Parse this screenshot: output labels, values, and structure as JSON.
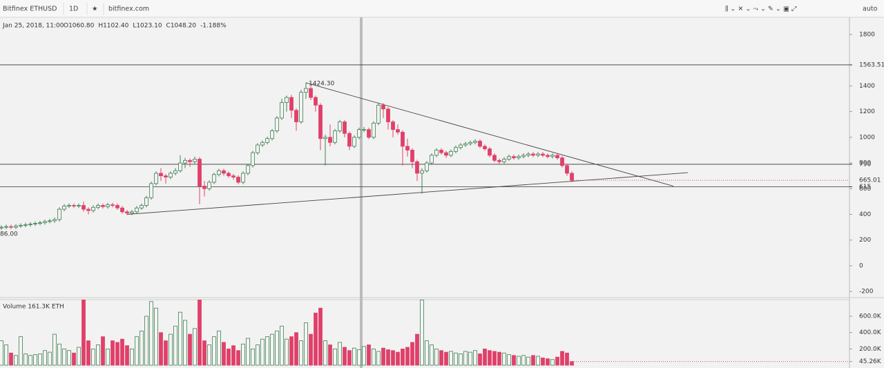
{
  "chart_data": {
    "type": "candlestick",
    "title": "Bitfinex ETHUSD",
    "interval": "1D",
    "source": "bitfinex.com",
    "scale_mode": "auto",
    "legend_date": "Jan 25, 2018, 11:00",
    "legend_ohlc": [
      "O1060.80",
      "H1102.40",
      "L1023.10",
      "C1048.20",
      "-1.188%"
    ],
    "volume_label": "Volume 161.3K ETH",
    "open": [
      295,
      300,
      305,
      300,
      310,
      315,
      320,
      325,
      330,
      335,
      345,
      350,
      360,
      440,
      465,
      470,
      465,
      470,
      440,
      430,
      455,
      470,
      460,
      475,
      470,
      450,
      420,
      410,
      420,
      450,
      470,
      530,
      640,
      720,
      700,
      690,
      720,
      740,
      800,
      820,
      810,
      830,
      620,
      600,
      650,
      710,
      740,
      720,
      700,
      690,
      650,
      720,
      780,
      880,
      940,
      960,
      990,
      1050,
      1150,
      1270,
      1310,
      1210,
      1120,
      1350,
      1380,
      1310,
      1250,
      990,
      1000,
      960,
      1050,
      1120,
      1030,
      930,
      1000,
      1060,
      1060,
      1000,
      1110,
      1250,
      1220,
      1120,
      1060,
      1040,
      930,
      900,
      810,
      720,
      740,
      800,
      860,
      900,
      880,
      860,
      890,
      920,
      940,
      950,
      960,
      970,
      930,
      910,
      860,
      820,
      810,
      830,
      850,
      840,
      850,
      860,
      870,
      860,
      870,
      860,
      850,
      860,
      840,
      780,
      720
    ],
    "high": [
      315,
      320,
      320,
      325,
      330,
      335,
      340,
      345,
      350,
      360,
      365,
      375,
      455,
      480,
      485,
      485,
      485,
      500,
      455,
      470,
      485,
      485,
      490,
      490,
      485,
      465,
      435,
      435,
      465,
      485,
      545,
      655,
      735,
      760,
      715,
      735,
      760,
      860,
      840,
      835,
      850,
      845,
      660,
      665,
      725,
      755,
      755,
      735,
      715,
      705,
      735,
      795,
      895,
      955,
      975,
      1005,
      1065,
      1165,
      1300,
      1325,
      1330,
      1225,
      1370,
      1424.3,
      1400,
      1325,
      1265,
      1020,
      1100,
      1065,
      1135,
      1135,
      1045,
      1015,
      1075,
      1080,
      1075,
      1125,
      1270,
      1265,
      1235,
      1135,
      1100,
      1055,
      990,
      915,
      825,
      760,
      815,
      875,
      915,
      915,
      895,
      905,
      935,
      955,
      965,
      975,
      985,
      985,
      945,
      925,
      875,
      835,
      845,
      865,
      865,
      865,
      875,
      885,
      885,
      885,
      885,
      875,
      875,
      875,
      855,
      795,
      735
    ],
    "low": [
      280,
      285,
      285,
      285,
      295,
      300,
      305,
      310,
      315,
      320,
      330,
      335,
      345,
      425,
      450,
      450,
      450,
      420,
      400,
      415,
      440,
      445,
      445,
      455,
      435,
      405,
      395,
      395,
      405,
      435,
      455,
      515,
      625,
      660,
      640,
      675,
      705,
      725,
      760,
      770,
      795,
      480,
      540,
      585,
      635,
      695,
      700,
      685,
      670,
      635,
      635,
      705,
      765,
      865,
      925,
      945,
      975,
      1035,
      1135,
      1200,
      1150,
      1050,
      1105,
      1300,
      1290,
      1200,
      900,
      780,
      930,
      945,
      1035,
      1000,
      900,
      915,
      985,
      1040,
      985,
      985,
      1095,
      1150,
      1060,
      1000,
      1020,
      780,
      850,
      760,
      660,
      560,
      725,
      785,
      845,
      865,
      840,
      845,
      875,
      905,
      925,
      935,
      945,
      915,
      895,
      845,
      805,
      790,
      795,
      815,
      825,
      825,
      835,
      845,
      845,
      845,
      845,
      835,
      835,
      825,
      765,
      700,
      650
    ],
    "close": [
      300,
      305,
      300,
      310,
      315,
      320,
      325,
      330,
      335,
      345,
      350,
      360,
      440,
      465,
      470,
      465,
      470,
      440,
      430,
      455,
      470,
      460,
      475,
      470,
      450,
      420,
      410,
      420,
      450,
      470,
      530,
      640,
      720,
      700,
      690,
      720,
      740,
      800,
      820,
      810,
      830,
      620,
      600,
      650,
      710,
      740,
      720,
      700,
      690,
      650,
      720,
      780,
      880,
      940,
      960,
      990,
      1050,
      1150,
      1270,
      1310,
      1210,
      1120,
      1350,
      1380,
      1310,
      1250,
      990,
      1000,
      960,
      1050,
      1120,
      1030,
      930,
      1000,
      1060,
      1060,
      1000,
      1110,
      1250,
      1220,
      1120,
      1060,
      1040,
      930,
      900,
      810,
      720,
      740,
      800,
      860,
      900,
      880,
      860,
      890,
      920,
      940,
      950,
      960,
      970,
      930,
      910,
      860,
      820,
      810,
      830,
      850,
      840,
      850,
      860,
      870,
      860,
      870,
      860,
      850,
      860,
      840,
      780,
      720,
      665.01
    ],
    "volume": [
      300000,
      250000,
      150000,
      120000,
      350000,
      140000,
      120000,
      130000,
      140000,
      180000,
      160000,
      380000,
      260000,
      200000,
      180000,
      150000,
      220000,
      800000,
      300000,
      200000,
      250000,
      350000,
      200000,
      300000,
      280000,
      320000,
      240000,
      200000,
      350000,
      420000,
      600000,
      780000,
      700000,
      400000,
      300000,
      380000,
      480000,
      650000,
      550000,
      380000,
      450000,
      800000,
      300000,
      250000,
      350000,
      420000,
      280000,
      200000,
      240000,
      180000,
      260000,
      330000,
      200000,
      250000,
      320000,
      350000,
      380000,
      420000,
      480000,
      320000,
      350000,
      400000,
      300000,
      520000,
      380000,
      640000,
      700000,
      300000,
      250000,
      200000,
      280000,
      220000,
      180000,
      210000,
      190000,
      230000,
      250000,
      200000,
      170000,
      210000,
      190000,
      180000,
      160000,
      200000,
      220000,
      280000,
      380000,
      800000,
      300000,
      250000,
      200000,
      180000,
      160000,
      170000,
      150000,
      140000,
      170000,
      160000,
      180000,
      140000,
      200000,
      180000,
      170000,
      160000,
      150000,
      130000,
      120000,
      110000,
      120000,
      100000,
      120000,
      110000,
      90000,
      80000,
      70000,
      100000,
      170000,
      150000,
      45260
    ],
    "up_color": "#3d7d4e",
    "down_color": "#e0406a",
    "ylim": [
      -242,
      1934
    ],
    "yticks": [
      -200,
      0,
      200,
      400,
      600,
      800,
      1000,
      1200,
      1400,
      1800
    ],
    "hlines": [
      1563.51,
      790,
      615
    ],
    "trendlines": [
      {
        "from": [
          26,
          400
        ],
        "to": [
          142,
          725
        ]
      },
      {
        "from": [
          63,
          1424.3
        ],
        "to": [
          139,
          620
        ]
      }
    ],
    "annotations": [
      "1424.30",
      "86.00"
    ],
    "volume_ylim": [
      0,
      795000
    ],
    "volume_ticks": [
      {
        "value": 45260,
        "label": "45.26K"
      },
      {
        "value": 200000,
        "label": "200.0K"
      },
      {
        "value": 400000,
        "label": "400.0K"
      },
      {
        "value": 600000,
        "label": "600.0K"
      }
    ]
  }
}
